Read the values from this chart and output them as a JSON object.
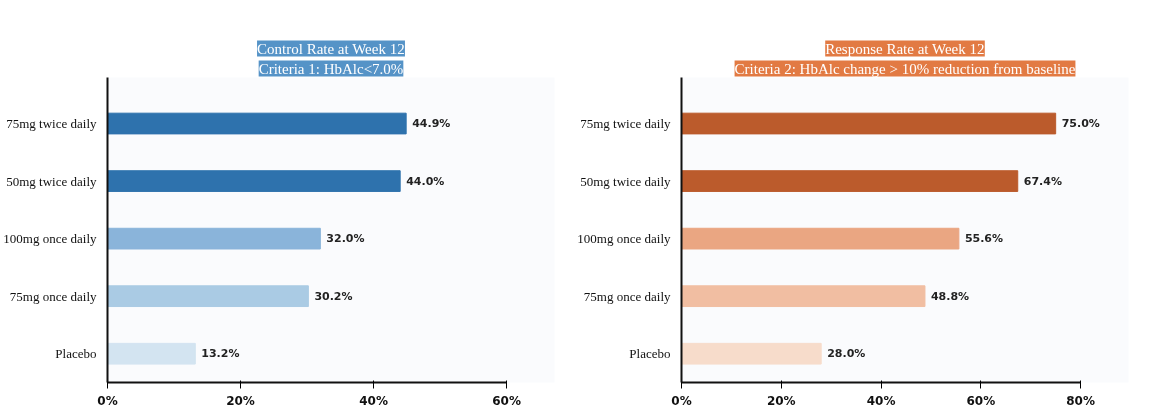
{
  "chart_data": [
    {
      "type": "bar",
      "orientation": "horizontal",
      "title": "Control Rate at Week 12",
      "subtitle": "Criteria 1: HbAlc<7.0%",
      "categories": [
        "75mg twice daily",
        "50mg twice daily",
        "100mg once daily",
        "75mg once daily",
        "Placebo"
      ],
      "values": [
        44.9,
        44.0,
        32.0,
        30.2,
        13.2
      ],
      "colors": [
        "#2e72ad",
        "#2e72ad",
        "#8ab4da",
        "#aacbe4",
        "#d3e4f1"
      ],
      "value_labels": [
        "44.9%",
        "44.0%",
        "32.0%",
        "30.2%",
        "13.2%"
      ],
      "xlim": [
        0,
        60
      ],
      "xticks": [
        {
          "value": 0,
          "label": "0%"
        },
        {
          "value": 20,
          "label": "20%"
        },
        {
          "value": 40,
          "label": "40%"
        },
        {
          "value": 60,
          "label": "60%"
        }
      ],
      "grid": false
    },
    {
      "type": "bar",
      "orientation": "horizontal",
      "title": "Response Rate at Week 12",
      "subtitle": "Criteria 2: HbAlc change > 10% reduction from baseline",
      "categories": [
        "75mg twice daily",
        "50mg twice daily",
        "100mg once daily",
        "75mg once daily",
        "Placebo"
      ],
      "values": [
        75.0,
        67.4,
        55.6,
        48.8,
        28.0
      ],
      "colors": [
        "#bb5b2c",
        "#bb5b2c",
        "#eaa682",
        "#f1bea2",
        "#f7dccb"
      ],
      "value_labels": [
        "75.0%",
        "67.4%",
        "55.6%",
        "48.8%",
        "28.0%"
      ],
      "xlim": [
        0,
        80
      ],
      "xticks": [
        {
          "value": 0,
          "label": "0%"
        },
        {
          "value": 20,
          "label": "20%"
        },
        {
          "value": 40,
          "label": "40%"
        },
        {
          "value": 60,
          "label": "60%"
        },
        {
          "value": 80,
          "label": "80%"
        }
      ],
      "grid": false
    }
  ]
}
